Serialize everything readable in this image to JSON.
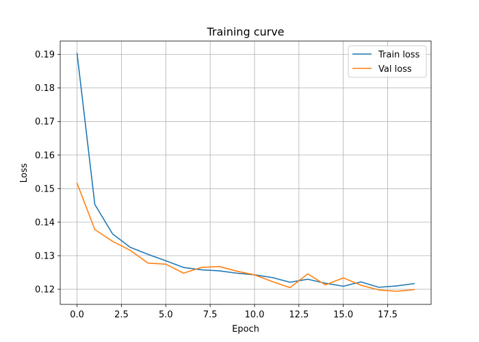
{
  "chart_data": {
    "type": "line",
    "title": "Training curve",
    "xlabel": "Epoch",
    "ylabel": "Loss",
    "xlim": [
      -0.95,
      19.95
    ],
    "ylim": [
      0.1155,
      0.194
    ],
    "xticks": [
      0,
      2.5,
      5,
      7.5,
      10,
      12.5,
      15,
      17.5
    ],
    "xtick_labels": [
      "0.0",
      "2.5",
      "5.0",
      "7.5",
      "10.0",
      "12.5",
      "15.0",
      "17.5"
    ],
    "yticks": [
      0.12,
      0.13,
      0.14,
      0.15,
      0.16,
      0.17,
      0.18,
      0.19
    ],
    "ytick_labels": [
      "0.12",
      "0.13",
      "0.14",
      "0.15",
      "0.16",
      "0.17",
      "0.18",
      "0.19"
    ],
    "grid": true,
    "legend_position": "top-right",
    "x": [
      0,
      1,
      2,
      3,
      4,
      5,
      6,
      7,
      8,
      9,
      10,
      11,
      12,
      13,
      14,
      15,
      16,
      17,
      18,
      19
    ],
    "series": [
      {
        "name": "Train loss",
        "color": "#1f77b4",
        "values": [
          0.1903,
          0.1453,
          0.1365,
          0.1325,
          0.1304,
          0.1285,
          0.1265,
          0.1258,
          0.1255,
          0.1248,
          0.1243,
          0.1235,
          0.1221,
          0.123,
          0.1218,
          0.1209,
          0.1222,
          0.1206,
          0.121,
          0.1217
        ]
      },
      {
        "name": "Val loss",
        "color": "#ff7f0e",
        "values": [
          0.1516,
          0.1378,
          0.1343,
          0.1316,
          0.1278,
          0.1275,
          0.1248,
          0.1265,
          0.1268,
          0.1254,
          0.1243,
          0.1223,
          0.1205,
          0.1246,
          0.1213,
          0.1234,
          0.1212,
          0.1198,
          0.1194,
          0.1199
        ]
      }
    ]
  }
}
